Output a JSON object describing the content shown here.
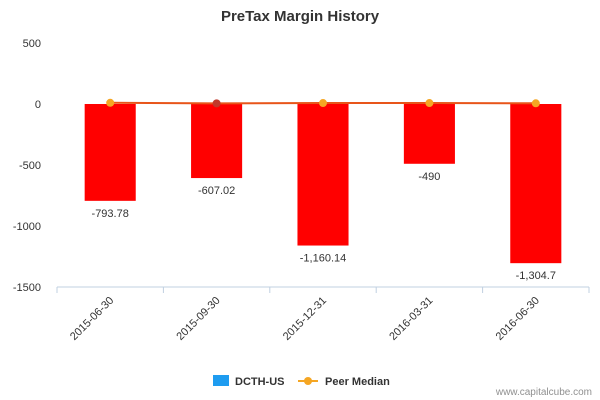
{
  "chart_data": {
    "type": "bar",
    "title": "PreTax Margin History",
    "xlabel": "",
    "ylabel": "",
    "ylim": [
      -1500,
      500
    ],
    "yticks": [
      500,
      0,
      -500,
      -1000,
      -1500
    ],
    "ytick_labels": [
      "500",
      "0",
      "-500",
      "-1000",
      "-1500"
    ],
    "categories": [
      "2015-06-30",
      "2015-09-30",
      "2015-12-31",
      "2016-03-31",
      "2016-06-30"
    ],
    "series": [
      {
        "name": "DCTH-US",
        "type": "bar",
        "values": [
          -793.78,
          -607.02,
          -1160.14,
          -490,
          -1304.7
        ],
        "labels": [
          "-793.78",
          "-607.02",
          "-1,160.14",
          "-490",
          "-1,304.7"
        ],
        "legend_color": "#1e9cf0",
        "bar_color": "#ff0000"
      },
      {
        "name": "Peer Median",
        "type": "line",
        "values": [
          10,
          5,
          8,
          8,
          6
        ],
        "color": "#f5a623",
        "line_color": "#e8551a",
        "highlight_index": 1,
        "highlight_color": "#c0392b"
      }
    ],
    "grid": false,
    "legend_position": "bottom-center"
  },
  "credit": "www.capitalcube.com"
}
